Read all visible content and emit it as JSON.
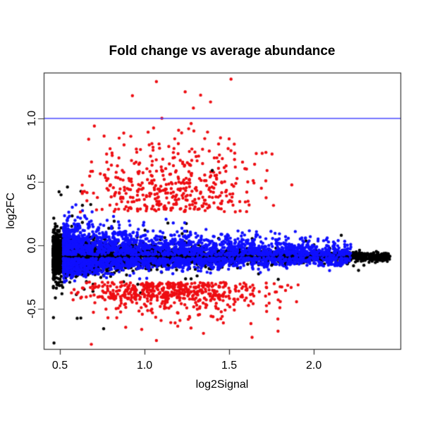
{
  "chart_data": {
    "type": "scatter",
    "title": "Fold change vs average abundance",
    "xlabel": "log2Signal",
    "ylabel": "log2FC",
    "grid": false,
    "background": "#ffffff",
    "axis_color": "#333333",
    "text_color": "#000000",
    "xlim": [
      0.404,
      2.512
    ],
    "ylim": [
      -0.817,
      1.361
    ],
    "x_ticks": [
      {
        "v": 0.5,
        "label": "0.5"
      },
      {
        "v": 1.0,
        "label": "1.0"
      },
      {
        "v": 1.5,
        "label": "1.5"
      },
      {
        "v": 2.0,
        "label": "2.0"
      }
    ],
    "y_ticks": [
      {
        "v": -0.5,
        "label": "-0.5"
      },
      {
        "v": 0.0,
        "label": "0.0"
      },
      {
        "v": 0.5,
        "label": "0.5"
      },
      {
        "v": 1.0,
        "label": "1.0"
      }
    ],
    "hline": {
      "y": 1.0,
      "color": "#4848ff",
      "width": 1.4
    },
    "point_radius": 2.2,
    "seed": 1234,
    "series": [
      {
        "name": "black-core",
        "color": "#000000",
        "n": 3600,
        "x": {
          "type": "pow",
          "lo": 0.46,
          "hi": 2.45,
          "k": 1.9
        },
        "y": {
          "type": "gauss-funnel",
          "mu": -0.088,
          "sd_base": 0.016,
          "sd_amp": 0.075,
          "sd_decay": 0.55,
          "outlier_frac": 0.045,
          "outlier_mult": 3.6
        }
      },
      {
        "name": "blue-mid-bands",
        "color": "#0f0fff",
        "n": 2900,
        "x": {
          "type": "pow",
          "lo": 0.52,
          "hi": 2.22,
          "k": 1.6
        },
        "y": {
          "type": "band-offset",
          "mu": -0.088,
          "up_frac": 0.58,
          "up_sigma": 0.135,
          "up_cap": 0.42,
          "dn_sigma": 0.075,
          "dn_cap": 0.225,
          "min_off": 0.015,
          "taper_base": 0.35,
          "taper_decay": 0.9
        }
      },
      {
        "name": "red-upper-cloud",
        "color": "#ee0d12",
        "n": 430,
        "x": {
          "type": "gauss",
          "mean": 1.15,
          "sd": 0.27,
          "lo": 0.62,
          "hi": 1.9
        },
        "y": {
          "type": "tail-up",
          "base": 0.26,
          "sigma": 0.3,
          "cap": 1.05
        }
      },
      {
        "name": "red-lower-band",
        "color": "#ee0d12",
        "n": 560,
        "x": {
          "type": "gauss",
          "mean": 1.15,
          "sd": 0.3,
          "lo": 0.56,
          "hi": 1.93
        },
        "y": {
          "type": "tail-down",
          "band_frac": 0.5,
          "band_lo": -0.43,
          "band_hi": -0.29,
          "base": -0.3,
          "sigma": 0.14,
          "cap": 0.48
        }
      }
    ],
    "notable_points": [
      {
        "x": 1.07,
        "y": 1.29,
        "color": "#ee0d12"
      },
      {
        "x": 1.24,
        "y": 1.21,
        "color": "#ee0d12"
      },
      {
        "x": 1.39,
        "y": 1.13,
        "color": "#ee0d12"
      },
      {
        "x": 1.07,
        "y": -0.75,
        "color": "#ee0d12"
      },
      {
        "x": 1.4,
        "y": 0.59,
        "color": "#000000"
      }
    ]
  }
}
